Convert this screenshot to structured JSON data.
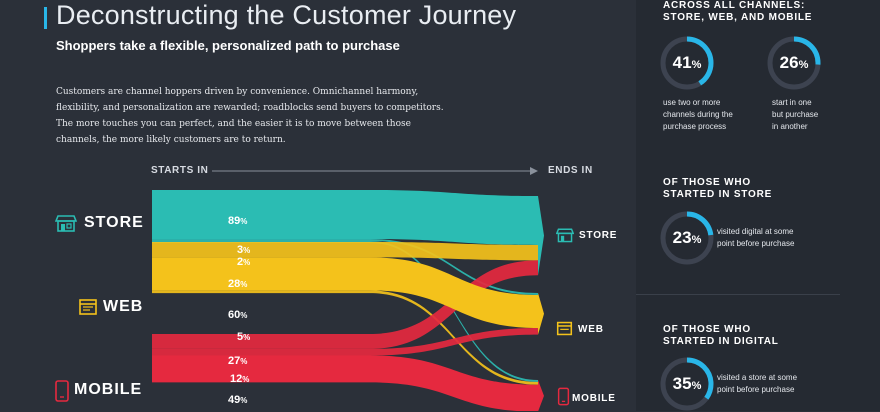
{
  "header": {
    "title": "Deconstructing the Customer Journey",
    "subtitle": "Shoppers take a flexible, personalized path to purchase",
    "intro": "Customers are channel hoppers driven by convenience. Omnichannel harmony, flexibility, and personalization are rewarded; roadblocks send buyers to competitors. The more touches you can perfect, and the easier it is to move between those channels, the more likely customers are to return."
  },
  "flow": {
    "starts_label": "STARTS IN",
    "ends_label": "ENDS IN",
    "colors": {
      "store": "#2bbcb3",
      "web": "#f4c21b",
      "mobile": "#e5293f"
    },
    "sources": [
      {
        "id": "store",
        "label": "STORE",
        "icon": "storefront-icon"
      },
      {
        "id": "web",
        "label": "WEB",
        "icon": "browser-window-icon"
      },
      {
        "id": "mobile",
        "label": "MOBILE",
        "icon": "smartphone-icon"
      }
    ],
    "destinations": [
      {
        "id": "store",
        "label": "STORE",
        "icon": "storefront-icon"
      },
      {
        "id": "web",
        "label": "WEB",
        "icon": "browser-window-icon"
      },
      {
        "id": "mobile",
        "label": "MOBILE",
        "icon": "smartphone-icon"
      }
    ],
    "links": [
      {
        "from": "store",
        "to": "store",
        "value": 89,
        "label": "89"
      },
      {
        "from": "store",
        "to": "web",
        "value": 3,
        "label": "3"
      },
      {
        "from": "store",
        "to": "mobile",
        "value": 2,
        "label": "2"
      },
      {
        "from": "web",
        "to": "store",
        "value": 28,
        "label": "28"
      },
      {
        "from": "web",
        "to": "web",
        "value": 60,
        "label": "60"
      },
      {
        "from": "web",
        "to": "mobile",
        "value": 5,
        "label": "5"
      },
      {
        "from": "mobile",
        "to": "store",
        "value": 27,
        "label": "27"
      },
      {
        "from": "mobile",
        "to": "web",
        "value": 12,
        "label": "12"
      },
      {
        "from": "mobile",
        "to": "mobile",
        "value": 49,
        "label": "49"
      }
    ],
    "percent_symbol": "%"
  },
  "sidebar": {
    "section1_title_line1": "ACROSS ALL CHANNELS:",
    "section1_title_line2": "STORE, WEB, AND MOBILE",
    "stat1": {
      "value": "41",
      "symbol": "%",
      "fraction": 0.41,
      "desc": [
        "use two or more",
        "channels during the",
        "purchase process"
      ]
    },
    "stat2": {
      "value": "26",
      "symbol": "%",
      "fraction": 0.26,
      "desc": [
        "start in one",
        "but purchase",
        "in another"
      ]
    },
    "section2_title_line1": "OF THOSE WHO",
    "section2_title_line2": "STARTED IN STORE",
    "stat3": {
      "value": "23",
      "symbol": "%",
      "fraction": 0.23,
      "desc": [
        "visited digital at some",
        "point before purchase"
      ]
    },
    "section3_title_line1": "OF THOSE WHO",
    "section3_title_line2": "STARTED IN DIGITAL",
    "stat4": {
      "value": "35",
      "symbol": "%",
      "fraction": 0.35,
      "desc": [
        "visited a store at some",
        "point before purchase"
      ]
    },
    "ring_color": "#29b6e8",
    "ring_track": "#3d4350"
  }
}
